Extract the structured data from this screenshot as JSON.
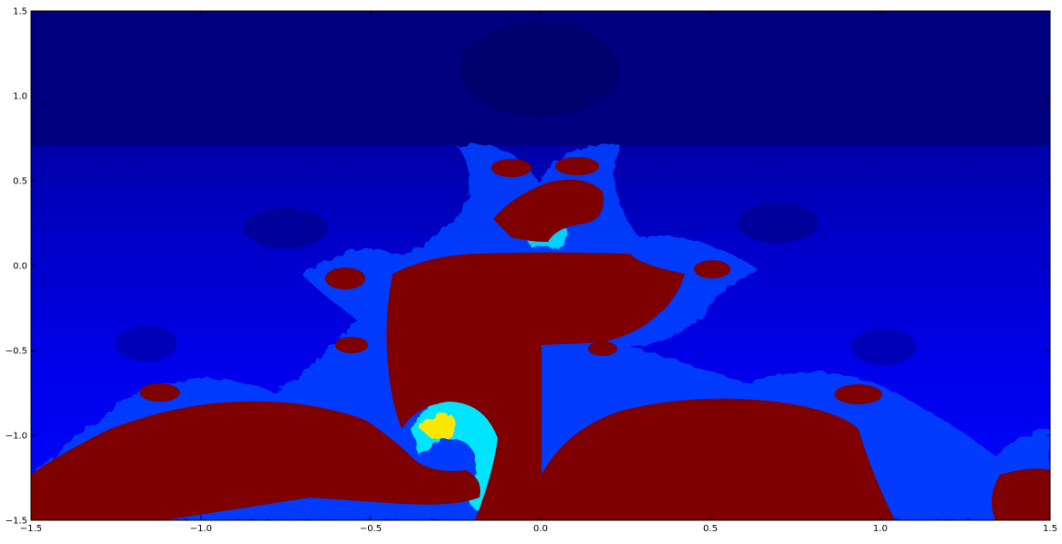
{
  "chart_data": {
    "type": "heatmap",
    "title": "",
    "xlabel": "",
    "ylabel": "",
    "xlim": [
      -1.5,
      1.5
    ],
    "ylim": [
      -1.5,
      1.5
    ],
    "x_ticks": [
      -1.5,
      -1.0,
      -0.5,
      0.0,
      0.5,
      1.0,
      1.5
    ],
    "x_tick_labels": [
      "−1.5",
      "−1.0",
      "−0.5",
      "0.0",
      "0.5",
      "1.0",
      "1.5"
    ],
    "y_ticks": [
      1.5,
      1.0,
      0.5,
      0.0,
      -0.5,
      -1.0,
      -1.5
    ],
    "y_tick_labels": [
      "1.5",
      "1.0",
      "0.5",
      "0.0",
      "−0.5",
      "−1.0",
      "−1.5"
    ],
    "grid": false,
    "legend": "none",
    "colormap": "jet",
    "colors": {
      "interior": "#7f0000",
      "background_dark": "#00007f",
      "background_light": "#0000ff"
    }
  }
}
